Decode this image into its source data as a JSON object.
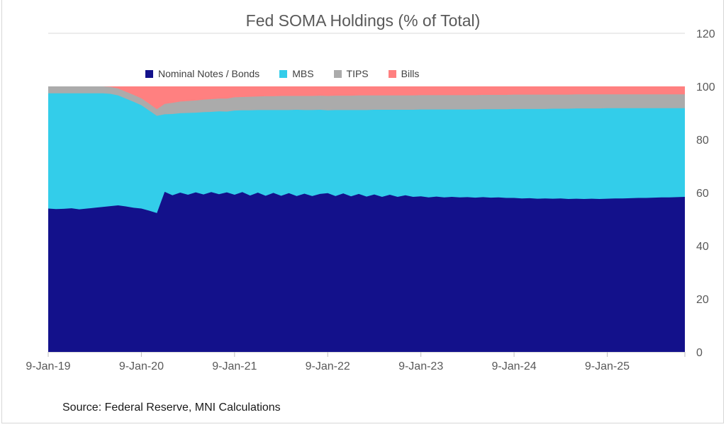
{
  "source_note": "Source: Federal Reserve, MNI Calculations",
  "frame_color": "#d6d6d6",
  "chart_data": {
    "type": "area",
    "stacked": true,
    "title": "Fed SOMA Holdings (% of Total)",
    "xlabel": "",
    "ylabel": "",
    "ylim": [
      0,
      120
    ],
    "y_ticks": [
      0,
      20,
      40,
      60,
      80,
      100,
      120
    ],
    "y_axis_side": "right",
    "legend_position": "top",
    "gridline_color": "#d9d9d9",
    "axis_text_color": "#595959",
    "x_ticks": [
      {
        "index": 0,
        "label": "9-Jan-19"
      },
      {
        "index": 12,
        "label": "9-Jan-20"
      },
      {
        "index": 24,
        "label": "9-Jan-21"
      },
      {
        "index": 36,
        "label": "9-Jan-22"
      },
      {
        "index": 48,
        "label": "9-Jan-23"
      },
      {
        "index": 60,
        "label": "9-Jan-24"
      },
      {
        "index": 72,
        "label": "9-Jan-25"
      }
    ],
    "months": [
      "Jan-19",
      "Feb-19",
      "Mar-19",
      "Apr-19",
      "May-19",
      "Jun-19",
      "Jul-19",
      "Aug-19",
      "Sep-19",
      "Oct-19",
      "Nov-19",
      "Dec-19",
      "Jan-20",
      "Feb-20",
      "Mar-20",
      "Apr-20",
      "May-20",
      "Jun-20",
      "Jul-20",
      "Aug-20",
      "Sep-20",
      "Oct-20",
      "Nov-20",
      "Dec-20",
      "Jan-21",
      "Feb-21",
      "Mar-21",
      "Apr-21",
      "May-21",
      "Jun-21",
      "Jul-21",
      "Aug-21",
      "Sep-21",
      "Oct-21",
      "Nov-21",
      "Dec-21",
      "Jan-22",
      "Feb-22",
      "Mar-22",
      "Apr-22",
      "May-22",
      "Jun-22",
      "Jul-22",
      "Aug-22",
      "Sep-22",
      "Oct-22",
      "Nov-22",
      "Dec-22",
      "Jan-23",
      "Feb-23",
      "Mar-23",
      "Apr-23",
      "May-23",
      "Jun-23",
      "Jul-23",
      "Aug-23",
      "Sep-23",
      "Oct-23",
      "Nov-23",
      "Dec-23",
      "Jan-24",
      "Feb-24",
      "Mar-24",
      "Apr-24",
      "May-24",
      "Jun-24",
      "Jul-24",
      "Aug-24",
      "Sep-24",
      "Oct-24",
      "Nov-24",
      "Dec-24",
      "Jan-25",
      "Feb-25",
      "Mar-25",
      "Apr-25",
      "May-25",
      "Jun-25",
      "Jul-25",
      "Aug-25",
      "Sep-25",
      "Oct-25",
      "Nov-25"
    ],
    "series": [
      {
        "name": "Nominal Notes / Bonds",
        "color": "#13118b",
        "values": [
          54.0,
          53.8,
          53.9,
          54.1,
          53.7,
          54.0,
          54.3,
          54.6,
          54.9,
          55.2,
          54.8,
          54.3,
          54.0,
          53.2,
          52.3,
          60.3,
          59.0,
          60.0,
          59.2,
          60.1,
          59.3,
          60.2,
          59.4,
          60.1,
          59.2,
          60.2,
          58.9,
          60.0,
          58.8,
          59.9,
          58.8,
          59.8,
          58.7,
          59.6,
          58.7,
          59.5,
          59.8,
          58.7,
          59.7,
          58.6,
          59.5,
          58.5,
          59.3,
          58.4,
          59.2,
          58.4,
          59.0,
          58.4,
          58.6,
          58.2,
          58.5,
          58.2,
          58.4,
          58.2,
          58.3,
          58.1,
          58.3,
          58.1,
          58.2,
          58.0,
          58.0,
          57.8,
          57.9,
          57.7,
          57.8,
          57.7,
          57.8,
          57.6,
          57.7,
          57.6,
          57.7,
          57.6,
          57.7,
          57.8,
          57.8,
          57.9,
          58.0,
          58.0,
          58.1,
          58.2,
          58.2,
          58.3,
          58.4
        ]
      },
      {
        "name": "MBS",
        "color": "#33cdea",
        "values": [
          43.4,
          43.6,
          43.5,
          43.3,
          43.7,
          43.4,
          43.1,
          42.8,
          42.3,
          41.4,
          40.6,
          39.9,
          38.9,
          37.7,
          36.6,
          29.2,
          30.6,
          29.9,
          30.8,
          30.0,
          31.0,
          30.2,
          31.2,
          30.4,
          31.7,
          30.8,
          32.1,
          31.1,
          32.3,
          31.2,
          32.3,
          31.3,
          32.5,
          31.5,
          32.4,
          31.7,
          31.2,
          32.4,
          31.4,
          32.5,
          31.6,
          32.6,
          31.9,
          32.8,
          32.0,
          32.8,
          32.2,
          32.8,
          32.7,
          33.1,
          32.8,
          33.1,
          32.9,
          33.1,
          33.0,
          33.2,
          33.1,
          33.3,
          33.2,
          33.4,
          33.5,
          33.7,
          33.6,
          33.8,
          33.7,
          33.9,
          33.8,
          34.0,
          34.0,
          34.1,
          34.0,
          34.1,
          34.1,
          34.0,
          34.0,
          33.9,
          33.8,
          33.8,
          33.7,
          33.6,
          33.6,
          33.5,
          33.4
        ]
      },
      {
        "name": "TIPS",
        "color": "#ababab",
        "values": [
          2.6,
          2.6,
          2.6,
          2.6,
          2.6,
          2.6,
          2.6,
          2.6,
          2.6,
          2.6,
          2.6,
          2.6,
          2.6,
          2.6,
          2.5,
          3.9,
          4.2,
          4.4,
          4.5,
          4.6,
          4.7,
          4.8,
          4.8,
          4.9,
          5.0,
          5.0,
          5.1,
          5.1,
          5.2,
          5.2,
          5.3,
          5.3,
          5.2,
          5.3,
          5.3,
          5.3,
          5.4,
          5.4,
          5.4,
          5.4,
          5.5,
          5.5,
          5.4,
          5.4,
          5.4,
          5.4,
          5.4,
          5.4,
          5.4,
          5.4,
          5.4,
          5.4,
          5.4,
          5.4,
          5.4,
          5.4,
          5.4,
          5.4,
          5.4,
          5.4,
          5.4,
          5.4,
          5.4,
          5.4,
          5.4,
          5.3,
          5.3,
          5.3,
          5.3,
          5.3,
          5.3,
          5.3,
          5.2,
          5.2,
          5.2,
          5.2,
          5.2,
          5.2,
          5.2,
          5.2,
          5.2,
          5.2,
          5.2
        ]
      },
      {
        "name": "Bills",
        "color": "#ff8080",
        "values": [
          0.0,
          0.0,
          0.0,
          0.0,
          0.0,
          0.0,
          0.0,
          0.0,
          0.2,
          0.8,
          2.0,
          3.2,
          4.5,
          6.5,
          8.6,
          6.6,
          6.2,
          5.7,
          5.5,
          5.3,
          5.0,
          4.8,
          4.6,
          4.6,
          4.1,
          4.0,
          3.9,
          3.8,
          3.7,
          3.7,
          3.6,
          3.6,
          3.6,
          3.6,
          3.6,
          3.5,
          3.6,
          3.5,
          3.5,
          3.5,
          3.4,
          3.4,
          3.4,
          3.4,
          3.4,
          3.4,
          3.4,
          3.4,
          3.3,
          3.3,
          3.3,
          3.3,
          3.3,
          3.3,
          3.3,
          3.3,
          3.2,
          3.2,
          3.2,
          3.2,
          3.1,
          3.1,
          3.1,
          3.1,
          3.1,
          3.1,
          3.1,
          3.1,
          3.0,
          3.0,
          3.0,
          3.0,
          3.0,
          3.0,
          3.0,
          3.0,
          3.0,
          3.0,
          3.0,
          3.0,
          3.0,
          3.0,
          3.0
        ]
      }
    ]
  }
}
